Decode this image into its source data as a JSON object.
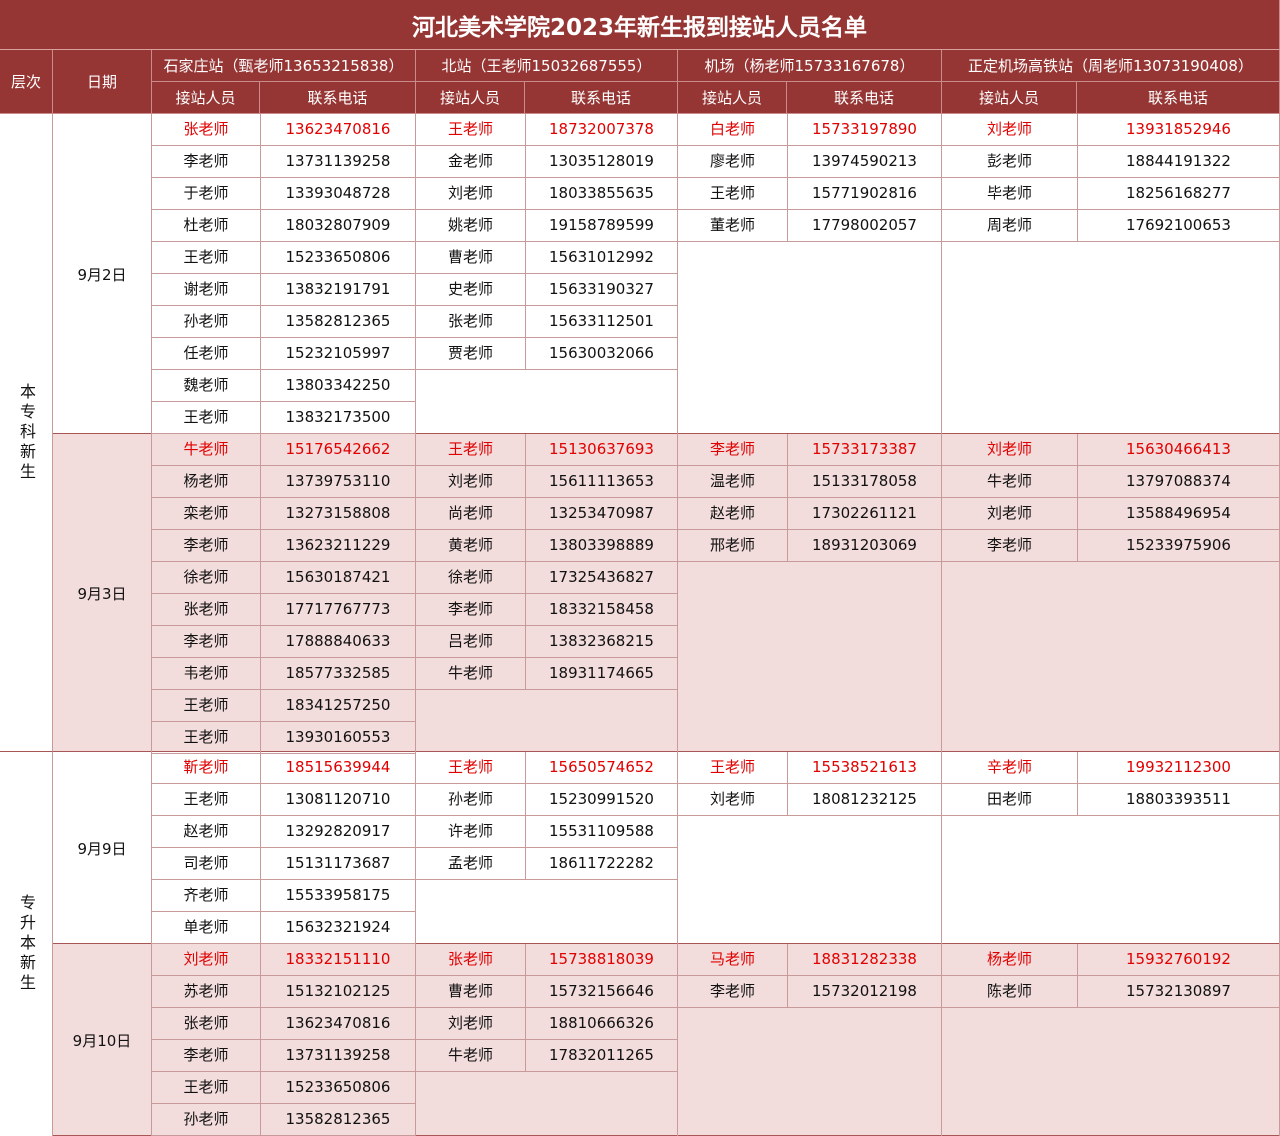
{
  "title": "河北美术学院2023年新生报到接站人员名单",
  "headers": {
    "level": "层次",
    "date": "日期",
    "stations": [
      "石家庄站（甄老师13653215838）",
      "北站（王老师15032687555）",
      "机场（杨老师15733167678）",
      "正定机场高铁站（周老师13073190408）"
    ],
    "staff": "接站人员",
    "phone": "联系电话"
  },
  "colors": {
    "header_bg": "#963634",
    "highlight_text": "#e00000",
    "alt_row_bg": "#f2dcdc"
  },
  "groups": [
    {
      "label": "本专科新生"
    },
    {
      "label": "专升本新生"
    }
  ],
  "blocks": [
    {
      "date": "9月2日",
      "stations": [
        [
          [
            "张老师",
            "13623470816"
          ],
          [
            "李老师",
            "13731139258"
          ],
          [
            "于老师",
            "13393048728"
          ],
          [
            "杜老师",
            "18032807909"
          ],
          [
            "王老师",
            "15233650806"
          ],
          [
            "谢老师",
            "13832191791"
          ],
          [
            "孙老师",
            "13582812365"
          ],
          [
            "任老师",
            "15232105997"
          ],
          [
            "魏老师",
            "13803342250"
          ],
          [
            "王老师",
            "13832173500"
          ]
        ],
        [
          [
            "王老师",
            "18732007378"
          ],
          [
            "金老师",
            "13035128019"
          ],
          [
            "刘老师",
            "18033855635"
          ],
          [
            "姚老师",
            "19158789599"
          ],
          [
            "曹老师",
            "15631012992"
          ],
          [
            "史老师",
            "15633190327"
          ],
          [
            "张老师",
            "15633112501"
          ],
          [
            "贾老师",
            "15630032066"
          ]
        ],
        [
          [
            "白老师",
            "15733197890"
          ],
          [
            "廖老师",
            "13974590213"
          ],
          [
            "王老师",
            "15771902816"
          ],
          [
            "董老师",
            "17798002057"
          ]
        ],
        [
          [
            "刘老师",
            "13931852946"
          ],
          [
            "彭老师",
            "18844191322"
          ],
          [
            "毕老师",
            "18256168277"
          ],
          [
            "周老师",
            "17692100653"
          ]
        ]
      ]
    },
    {
      "date": "9月3日",
      "stations": [
        [
          [
            "牛老师",
            "15176542662"
          ],
          [
            "杨老师",
            "13739753110"
          ],
          [
            "栾老师",
            "13273158808"
          ],
          [
            "李老师",
            "13623211229"
          ],
          [
            "徐老师",
            "15630187421"
          ],
          [
            "张老师",
            "17717767773"
          ],
          [
            "李老师",
            "17888840633"
          ],
          [
            "韦老师",
            "18577332585"
          ],
          [
            "王老师",
            "18341257250"
          ],
          [
            "王老师",
            "13930160553"
          ]
        ],
        [
          [
            "王老师",
            "15130637693"
          ],
          [
            "刘老师",
            "15611113653"
          ],
          [
            "尚老师",
            "13253470987"
          ],
          [
            "黄老师",
            "13803398889"
          ],
          [
            "徐老师",
            "17325436827"
          ],
          [
            "李老师",
            "18332158458"
          ],
          [
            "吕老师",
            "13832368215"
          ],
          [
            "牛老师",
            "18931174665"
          ]
        ],
        [
          [
            "李老师",
            "15733173387"
          ],
          [
            "温老师",
            "15133178058"
          ],
          [
            "赵老师",
            "17302261121"
          ],
          [
            "邢老师",
            "18931203069"
          ]
        ],
        [
          [
            "刘老师",
            "15630466413"
          ],
          [
            "牛老师",
            "13797088374"
          ],
          [
            "刘老师",
            "13588496954"
          ],
          [
            "李老师",
            "15233975906"
          ]
        ]
      ]
    },
    {
      "date": "9月9日",
      "stations": [
        [
          [
            "靳老师",
            "18515639944"
          ],
          [
            "王老师",
            "13081120710"
          ],
          [
            "赵老师",
            "13292820917"
          ],
          [
            "司老师",
            "15131173687"
          ],
          [
            "齐老师",
            "15533958175"
          ],
          [
            "单老师",
            "15632321924"
          ]
        ],
        [
          [
            "王老师",
            "15650574652"
          ],
          [
            "孙老师",
            "15230991520"
          ],
          [
            "许老师",
            "15531109588"
          ],
          [
            "孟老师",
            "18611722282"
          ]
        ],
        [
          [
            "王老师",
            "15538521613"
          ],
          [
            "刘老师",
            "18081232125"
          ]
        ],
        [
          [
            "辛老师",
            "19932112300"
          ],
          [
            "田老师",
            "18803393511"
          ]
        ]
      ]
    },
    {
      "date": "9月10日",
      "stations": [
        [
          [
            "刘老师",
            "18332151110"
          ],
          [
            "苏老师",
            "15132102125"
          ],
          [
            "张老师",
            "13623470816"
          ],
          [
            "李老师",
            "13731139258"
          ],
          [
            "王老师",
            "15233650806"
          ],
          [
            "孙老师",
            "13582812365"
          ]
        ],
        [
          [
            "张老师",
            "15738818039"
          ],
          [
            "曹老师",
            "15732156646"
          ],
          [
            "刘老师",
            "18810666326"
          ],
          [
            "牛老师",
            "17832011265"
          ]
        ],
        [
          [
            "马老师",
            "18831282338"
          ],
          [
            "李老师",
            "15732012198"
          ]
        ],
        [
          [
            "杨老师",
            "15932760192"
          ],
          [
            "陈老师",
            "15732130897"
          ]
        ]
      ]
    }
  ]
}
